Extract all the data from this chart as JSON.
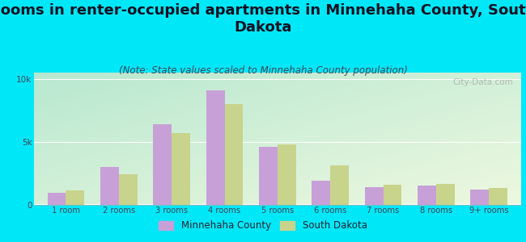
{
  "categories": [
    "1 room",
    "2 rooms",
    "3 rooms",
    "4 rooms",
    "5 rooms",
    "6 rooms",
    "7 rooms",
    "8 rooms",
    "9+ rooms"
  ],
  "minnehaha_values": [
    900,
    3000,
    6400,
    9100,
    4600,
    1900,
    1400,
    1500,
    1200
  ],
  "south_dakota_values": [
    1100,
    2400,
    5700,
    8000,
    4800,
    3100,
    1600,
    1650,
    1300
  ],
  "minnehaha_color": "#c8a0d8",
  "south_dakota_color": "#c8d48c",
  "title": "Rooms in renter-occupied apartments in Minnehaha County, South\nDakota",
  "subtitle": "(Note: State values scaled to Minnehaha County population)",
  "ylim": [
    0,
    10500
  ],
  "yticks": [
    0,
    5000,
    10000
  ],
  "ytick_labels": [
    "0",
    "5k",
    "10k"
  ],
  "legend_minnehaha": "Minnehaha County",
  "legend_sd": "South Dakota",
  "bg_outer": "#00e8f8",
  "bg_grad_topleft": "#b8e8d0",
  "bg_grad_bottomright": "#eef8e0",
  "watermark": "City-Data.com",
  "bar_width": 0.35,
  "title_fontsize": 13,
  "subtitle_fontsize": 8.5
}
